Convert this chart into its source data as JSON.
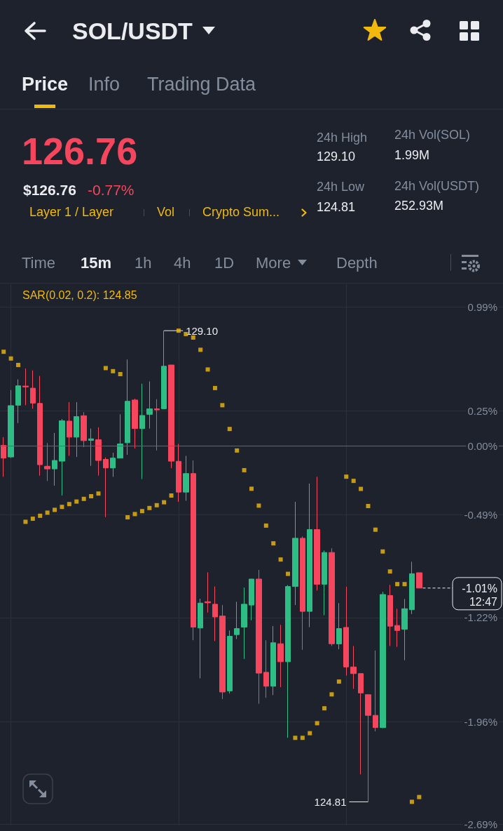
{
  "chart_data": {
    "type": "candlestick",
    "title": "SOL/USDT",
    "annotations": [
      "Price",
      "Info",
      "Trading Data",
      "126.76",
      "$126.76",
      "-0.77%",
      "Layer 1 / Layer",
      "Vol",
      "Crypto Sum...",
      "24h High",
      "129.10",
      "24h Low",
      "124.81",
      "24h Vol(SOL)",
      "1.99M",
      "24h Vol(USDT)",
      "252.93M",
      "Time",
      "15m",
      "1h",
      "4h",
      "1D",
      "More",
      "Depth",
      "129.10",
      "124.81"
    ],
    "categories": [
      null,
      null,
      null,
      null,
      null,
      null,
      null,
      null,
      null,
      null,
      null,
      null,
      null,
      null,
      null,
      null,
      null,
      null,
      null,
      null,
      null,
      null,
      null,
      null,
      null,
      null,
      null,
      null,
      null,
      null,
      null,
      null,
      null,
      null,
      null,
      null,
      null,
      null,
      null,
      null,
      null,
      null,
      null,
      null,
      null,
      null,
      null,
      null,
      null,
      null,
      null,
      null,
      null,
      null,
      null,
      null,
      null,
      null,
      null,
      null,
      null,
      null,
      null,
      null,
      null,
      null,
      null,
      null,
      null
    ],
    "ohlc": [
      [
        0.005,
        0.063,
        -0.219,
        -0.086
      ],
      [
        -0.078,
        0.398,
        -0.086,
        0.287
      ],
      [
        0.29,
        0.474,
        0.163,
        0.428
      ],
      [
        0.426,
        0.551,
        0.29,
        0.42
      ],
      [
        0.411,
        0.537,
        0.265,
        0.305
      ],
      [
        0.303,
        0.498,
        -0.211,
        -0.133
      ],
      [
        -0.144,
        0.021,
        -0.249,
        -0.163
      ],
      [
        -0.163,
        0.093,
        -0.282,
        -0.103
      ],
      [
        -0.108,
        0.192,
        -0.352,
        0.179
      ],
      [
        0.177,
        0.312,
        -0.07,
        0.063
      ],
      [
        0.063,
        0.312,
        -0.078,
        0.209
      ],
      [
        0.215,
        0.24,
        -0.008,
        0.038
      ],
      [
        0.04,
        0.124,
        -0.141,
        0.051
      ],
      [
        0.045,
        0.133,
        -0.211,
        -0.103
      ],
      [
        -0.095,
        -0.081,
        -0.506,
        -0.156
      ],
      [
        -0.156,
        -0.048,
        -0.219,
        -0.086
      ],
      [
        -0.086,
        0.225,
        -0.086,
        0.015
      ],
      [
        0.023,
        0.615,
        -0.063,
        0.318
      ],
      [
        0.327,
        0.337,
        -0.017,
        0.124
      ],
      [
        0.124,
        0.443,
        -0.235,
        0.217
      ],
      [
        0.225,
        0.459,
        0.124,
        0.264
      ],
      [
        0.264,
        0.333,
        -0.032,
        0.257
      ],
      [
        0.265,
        0.82,
        0.265,
        0.567
      ],
      [
        0.576,
        0.576,
        -0.158,
        -0.108
      ],
      [
        -0.109,
        0.015,
        -0.397,
        -0.328
      ],
      [
        -0.328,
        -0.07,
        -0.389,
        -0.196
      ],
      [
        -0.196,
        -0.103,
        -1.381,
        -1.288
      ],
      [
        -1.294,
        -1.086,
        -1.652,
        -1.117
      ],
      [
        -1.107,
        -0.898,
        -1.184,
        -1.115
      ],
      [
        -1.125,
        -0.999,
        -1.387,
        -1.215
      ],
      [
        -1.209,
        -1.131,
        -1.8,
        -1.749
      ],
      [
        -1.741,
        -1.312,
        -1.76,
        -1.353
      ],
      [
        -1.341,
        -1.107,
        -1.373,
        -1.298
      ],
      [
        -1.288,
        -1.006,
        -1.514,
        -1.125
      ],
      [
        -1.131,
        -0.946,
        -1.239,
        -0.946
      ],
      [
        -0.946,
        -0.881,
        -1.833,
        -1.615
      ],
      [
        -1.609,
        -1.381,
        -1.79,
        -1.708
      ],
      [
        -1.708,
        -1.28,
        -1.771,
        -1.399
      ],
      [
        -1.406,
        -1.272,
        -1.715,
        -1.534
      ],
      [
        -1.534,
        -0.989,
        -2.075,
        -0.999
      ],
      [
        -0.999,
        -0.397,
        -1.131,
        -0.656
      ],
      [
        -0.656,
        -0.643,
        -1.449,
        -1.176
      ],
      [
        -1.176,
        -0.267,
        -1.288,
        -0.594
      ],
      [
        -0.594,
        -0.219,
        -1.028,
        -0.983
      ],
      [
        -0.983,
        -0.743,
        -1.203,
        -0.757
      ],
      [
        -0.757,
        -0.727,
        -1.422,
        -1.406
      ],
      [
        -1.407,
        -1.117,
        -1.445,
        -1.298
      ],
      [
        -1.29,
        -1.001,
        -1.632,
        -1.571
      ],
      [
        -1.571,
        -1.422,
        -1.727,
        -1.618
      ],
      [
        -1.618,
        -1.618,
        -2.335,
        -1.756
      ],
      [
        -1.768,
        -1.768,
        -2.53,
        -1.915
      ],
      [
        -1.915,
        -1.454,
        -2.029,
        -2.002
      ],
      [
        -2.002,
        -1.036,
        -2.007,
        -1.056
      ],
      [
        -1.063,
        -0.987,
        -1.422,
        -1.281
      ],
      [
        -1.276,
        -1.157,
        -1.428,
        -1.312
      ],
      [
        -1.303,
        -1.088,
        -1.523,
        -1.157
      ],
      [
        -1.164,
        -0.823,
        -1.195,
        -0.908
      ],
      [
        -0.901,
        -0.901,
        -1.01,
        -1.01
      ],
      null,
      null,
      null,
      null,
      null,
      null,
      null,
      null,
      null,
      null,
      null
    ],
    "colors": [
      "#f6465d",
      "#2ebd85",
      "#2ebd85",
      "#f6465d",
      "#f6465d",
      "#f6465d",
      "#f6465d",
      "#2ebd85",
      "#2ebd85",
      "#f6465d",
      "#2ebd85",
      "#f6465d",
      "#2ebd85",
      "#f6465d",
      "#f6465d",
      "#2ebd85",
      "#2ebd85",
      "#2ebd85",
      "#f6465d",
      "#2ebd85",
      "#2ebd85",
      "#f6465d",
      "#2ebd85",
      "#f6465d",
      "#f6465d",
      "#2ebd85",
      "#f6465d",
      "#2ebd85",
      "#f6465d",
      "#f6465d",
      "#f6465d",
      "#2ebd85",
      "#2ebd85",
      "#2ebd85",
      "#2ebd85",
      "#f6465d",
      "#f6465d",
      "#2ebd85",
      "#f6465d",
      "#2ebd85",
      "#2ebd85",
      "#f6465d",
      "#2ebd85",
      "#f6465d",
      "#2ebd85",
      "#f6465d",
      "#2ebd85",
      "#f6465d",
      "#f6465d",
      "#f6465d",
      "#f6465d",
      "#f6465d",
      "#2ebd85",
      "#f6465d",
      "#f6465d",
      "#2ebd85",
      "#2ebd85",
      "#f6465d",
      null,
      null,
      null,
      null,
      null,
      null,
      null,
      null,
      null,
      null,
      null
    ],
    "series": [
      {
        "type": "scatter",
        "name": "SAR(0.02, 0.2): 124.85",
        "color": "#f0b90b",
        "marker": "square",
        "values": [
          0.67,
          0.622,
          0.576,
          -0.539,
          -0.517,
          -0.496,
          -0.474,
          -0.454,
          -0.433,
          -0.413,
          -0.395,
          -0.376,
          -0.357,
          -0.338,
          0.554,
          0.532,
          0.511,
          -0.507,
          -0.484,
          -0.463,
          -0.441,
          -0.421,
          -0.4,
          -0.352,
          0.82,
          0.796,
          0.771,
          0.684,
          0.544,
          0.412,
          0.29,
          0.121,
          -0.032,
          -0.172,
          -0.304,
          -0.424,
          -0.566,
          -0.692,
          -0.807,
          -0.909,
          -2.075,
          -2.075,
          -2.042,
          -1.971,
          -1.865,
          -1.766,
          -1.675,
          -0.218,
          -0.248,
          -0.305,
          -0.427,
          -0.595,
          -0.75,
          -0.892,
          -0.982,
          -0.982,
          -2.53,
          -2.496,
          null,
          null,
          null,
          null,
          null,
          null,
          null,
          null,
          null,
          null,
          null
        ]
      }
    ],
    "ylim": [
      -2.7,
      1.15
    ],
    "yticks": [
      {
        "value": 0.99,
        "label": "0.99%"
      },
      {
        "value": 0.25,
        "label": "0.25%"
      },
      {
        "value": 0,
        "label": "0.00%"
      },
      {
        "value": -0.49,
        "label": "-0.49%"
      },
      {
        "value": -1.22,
        "label": "-1.22%"
      },
      {
        "value": -1.96,
        "label": "-1.96%"
      },
      {
        "value": -2.69,
        "label": "-2.69%"
      }
    ],
    "grid": true,
    "legend": "top left",
    "tick_labels": "y",
    "ref_lines": [
      {
        "axis": "y",
        "value": 0,
        "color": "#5e6673"
      },
      {
        "axis": "y",
        "value": -1.01,
        "label": "-1.01%\n12:47",
        "color": "#eaecef",
        "line_style": "dashed"
      }
    ]
  }
}
